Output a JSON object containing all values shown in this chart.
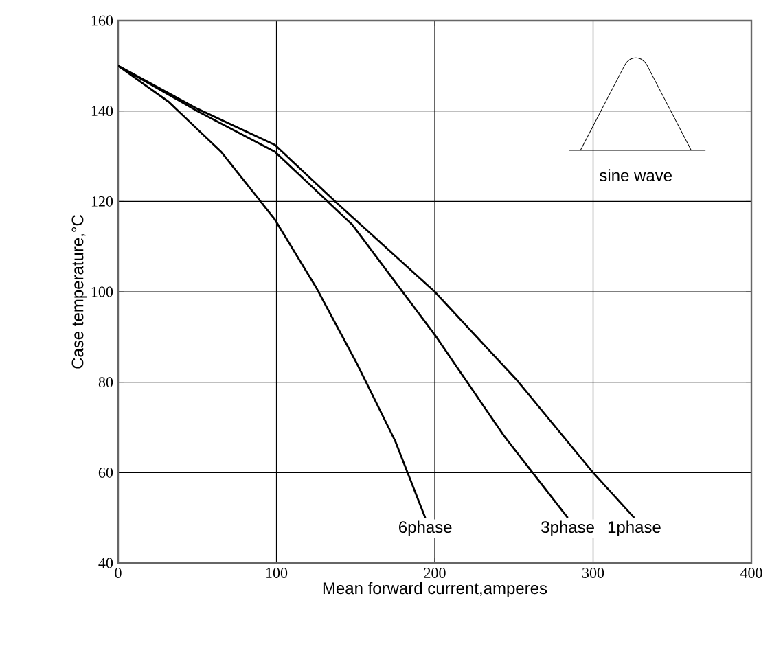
{
  "chart_data": {
    "type": "line",
    "xlabel": "Mean forward current,amperes",
    "ylabel": "Case temperature,°C",
    "xlim": [
      0,
      400
    ],
    "ylim": [
      40,
      160
    ],
    "xticks": [
      0,
      100,
      200,
      300,
      400
    ],
    "yticks": [
      40,
      60,
      80,
      100,
      120,
      140,
      160
    ],
    "grid": true,
    "marker": "none",
    "line_style": "solid",
    "series": [
      {
        "name": "6phase",
        "color": "#000000",
        "x": [
          0,
          32,
          65,
          99,
          125,
          151,
          175,
          194
        ],
        "values": [
          150,
          142,
          131,
          116,
          101,
          84,
          67,
          50
        ]
      },
      {
        "name": "3phase",
        "color": "#000000",
        "x": [
          0,
          50,
          99,
          148,
          200,
          244,
          284
        ],
        "values": [
          150,
          140,
          131,
          114.8,
          90.5,
          68,
          50
        ]
      },
      {
        "name": "1phase",
        "color": "#000000",
        "x": [
          0,
          50,
          99,
          137,
          200,
          252,
          300,
          326
        ],
        "values": [
          150,
          140.5,
          132.5,
          120,
          100,
          80.4,
          60,
          50
        ]
      }
    ],
    "annotations": [
      "sine wave"
    ]
  }
}
